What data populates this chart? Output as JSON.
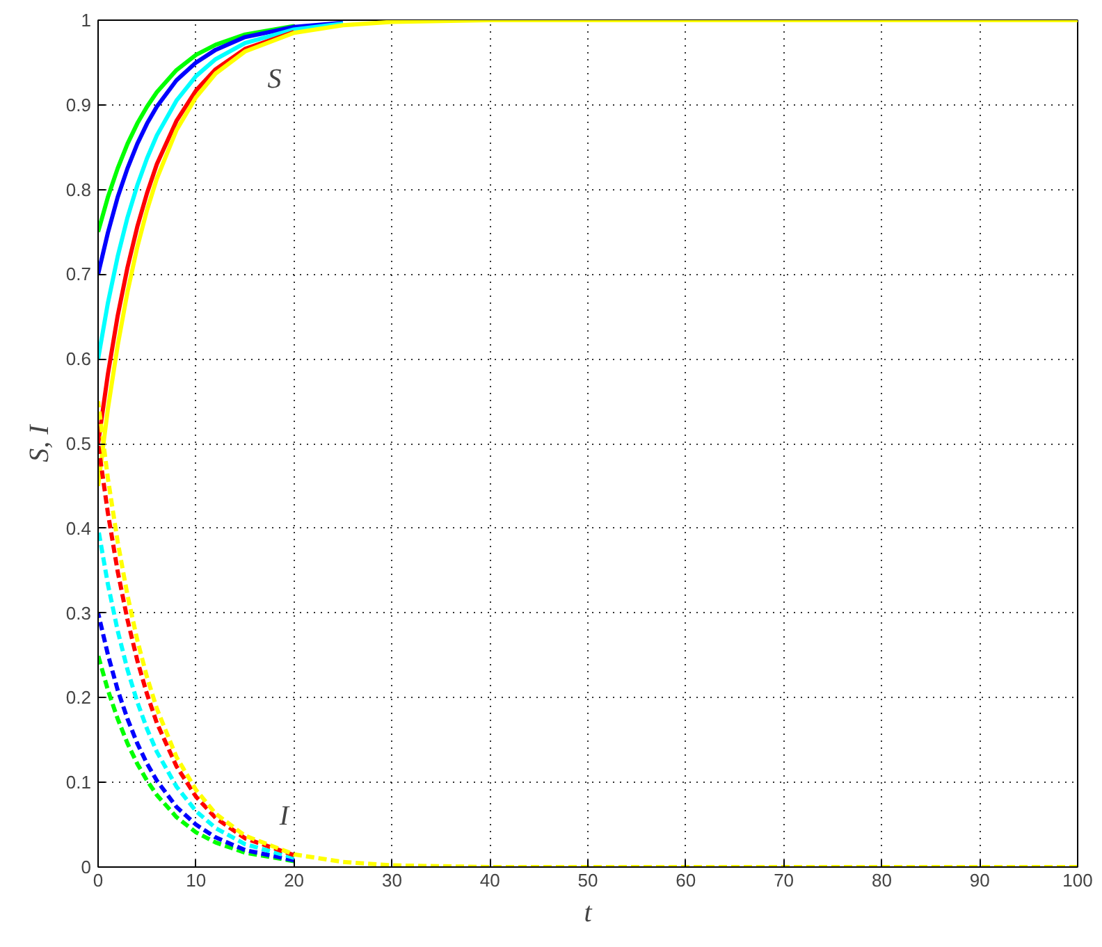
{
  "chart_data": {
    "type": "line",
    "xlabel": "t",
    "ylabel": "S, I",
    "x": [
      0,
      1,
      2,
      3,
      4,
      5,
      6,
      8,
      10,
      12,
      15,
      20,
      25,
      30,
      40,
      50,
      100
    ],
    "xlim": [
      0,
      100
    ],
    "ylim": [
      0,
      1
    ],
    "xticks": [
      0,
      10,
      20,
      30,
      40,
      50,
      60,
      70,
      80,
      90,
      100
    ],
    "yticks": [
      0,
      0.1,
      0.2,
      0.3,
      0.4,
      0.5,
      0.6,
      0.7,
      0.8,
      0.9,
      1
    ],
    "grid": true,
    "series": [
      {
        "color": "#00ff00",
        "line_style": "solid",
        "values": [
          0.75,
          0.791,
          0.825,
          0.854,
          0.878,
          0.898,
          0.915,
          0.941,
          0.959,
          0.971,
          0.983,
          0.993,
          null,
          null,
          null,
          null,
          null
        ]
      },
      {
        "color": "#0000ff",
        "line_style": "solid",
        "values": [
          0.7,
          0.749,
          0.791,
          0.825,
          0.854,
          0.878,
          0.898,
          0.929,
          0.95,
          0.965,
          0.98,
          0.992,
          0.997,
          null,
          null,
          null,
          null
        ]
      },
      {
        "color": "#00ffff",
        "line_style": "solid",
        "values": [
          0.6,
          0.666,
          0.721,
          0.767,
          0.805,
          0.837,
          0.864,
          0.905,
          0.934,
          0.954,
          0.973,
          0.989,
          0.996,
          null,
          null,
          null,
          null
        ]
      },
      {
        "color": "#ff0000",
        "line_style": "solid",
        "values": [
          0.5,
          0.582,
          0.651,
          0.708,
          0.756,
          0.796,
          0.83,
          0.881,
          0.917,
          0.942,
          0.966,
          0.986,
          null,
          null,
          null,
          null,
          null
        ]
      },
      {
        "color": "#ffff00",
        "line_style": "solid",
        "values": [
          0.45,
          0.541,
          0.616,
          0.679,
          0.732,
          0.776,
          0.813,
          0.87,
          0.909,
          0.937,
          0.963,
          0.985,
          0.994,
          0.998,
          1,
          1,
          1
        ]
      },
      {
        "color": "#00ff00",
        "line_style": "dashed",
        "values": [
          0.25,
          0.209,
          0.175,
          0.146,
          0.122,
          0.102,
          0.085,
          0.059,
          0.041,
          0.029,
          0.017,
          0.007,
          null,
          null,
          null,
          null,
          null
        ]
      },
      {
        "color": "#0000ff",
        "line_style": "dashed",
        "values": [
          0.3,
          0.251,
          0.209,
          0.175,
          0.146,
          0.122,
          0.102,
          0.071,
          0.05,
          0.035,
          0.02,
          0.008,
          null,
          null,
          null,
          null,
          null
        ]
      },
      {
        "color": "#00ffff",
        "line_style": "dashed",
        "values": [
          0.4,
          0.334,
          0.279,
          0.233,
          0.195,
          0.163,
          0.136,
          0.095,
          0.066,
          0.046,
          0.027,
          0.011,
          null,
          null,
          null,
          null,
          null
        ]
      },
      {
        "color": "#ff0000",
        "line_style": "dashed",
        "values": [
          0.5,
          0.418,
          0.349,
          0.292,
          0.244,
          0.204,
          0.17,
          0.119,
          0.083,
          0.058,
          0.034,
          0.014,
          null,
          null,
          null,
          null,
          null
        ]
      },
      {
        "color": "#ffff00",
        "line_style": "dashed",
        "values": [
          0.55,
          0.459,
          0.384,
          0.321,
          0.268,
          0.224,
          0.187,
          0.13,
          0.091,
          0.063,
          0.037,
          0.015,
          0.006,
          0.002,
          0,
          0,
          0
        ]
      }
    ],
    "annotations": [
      "S",
      "I"
    ]
  }
}
